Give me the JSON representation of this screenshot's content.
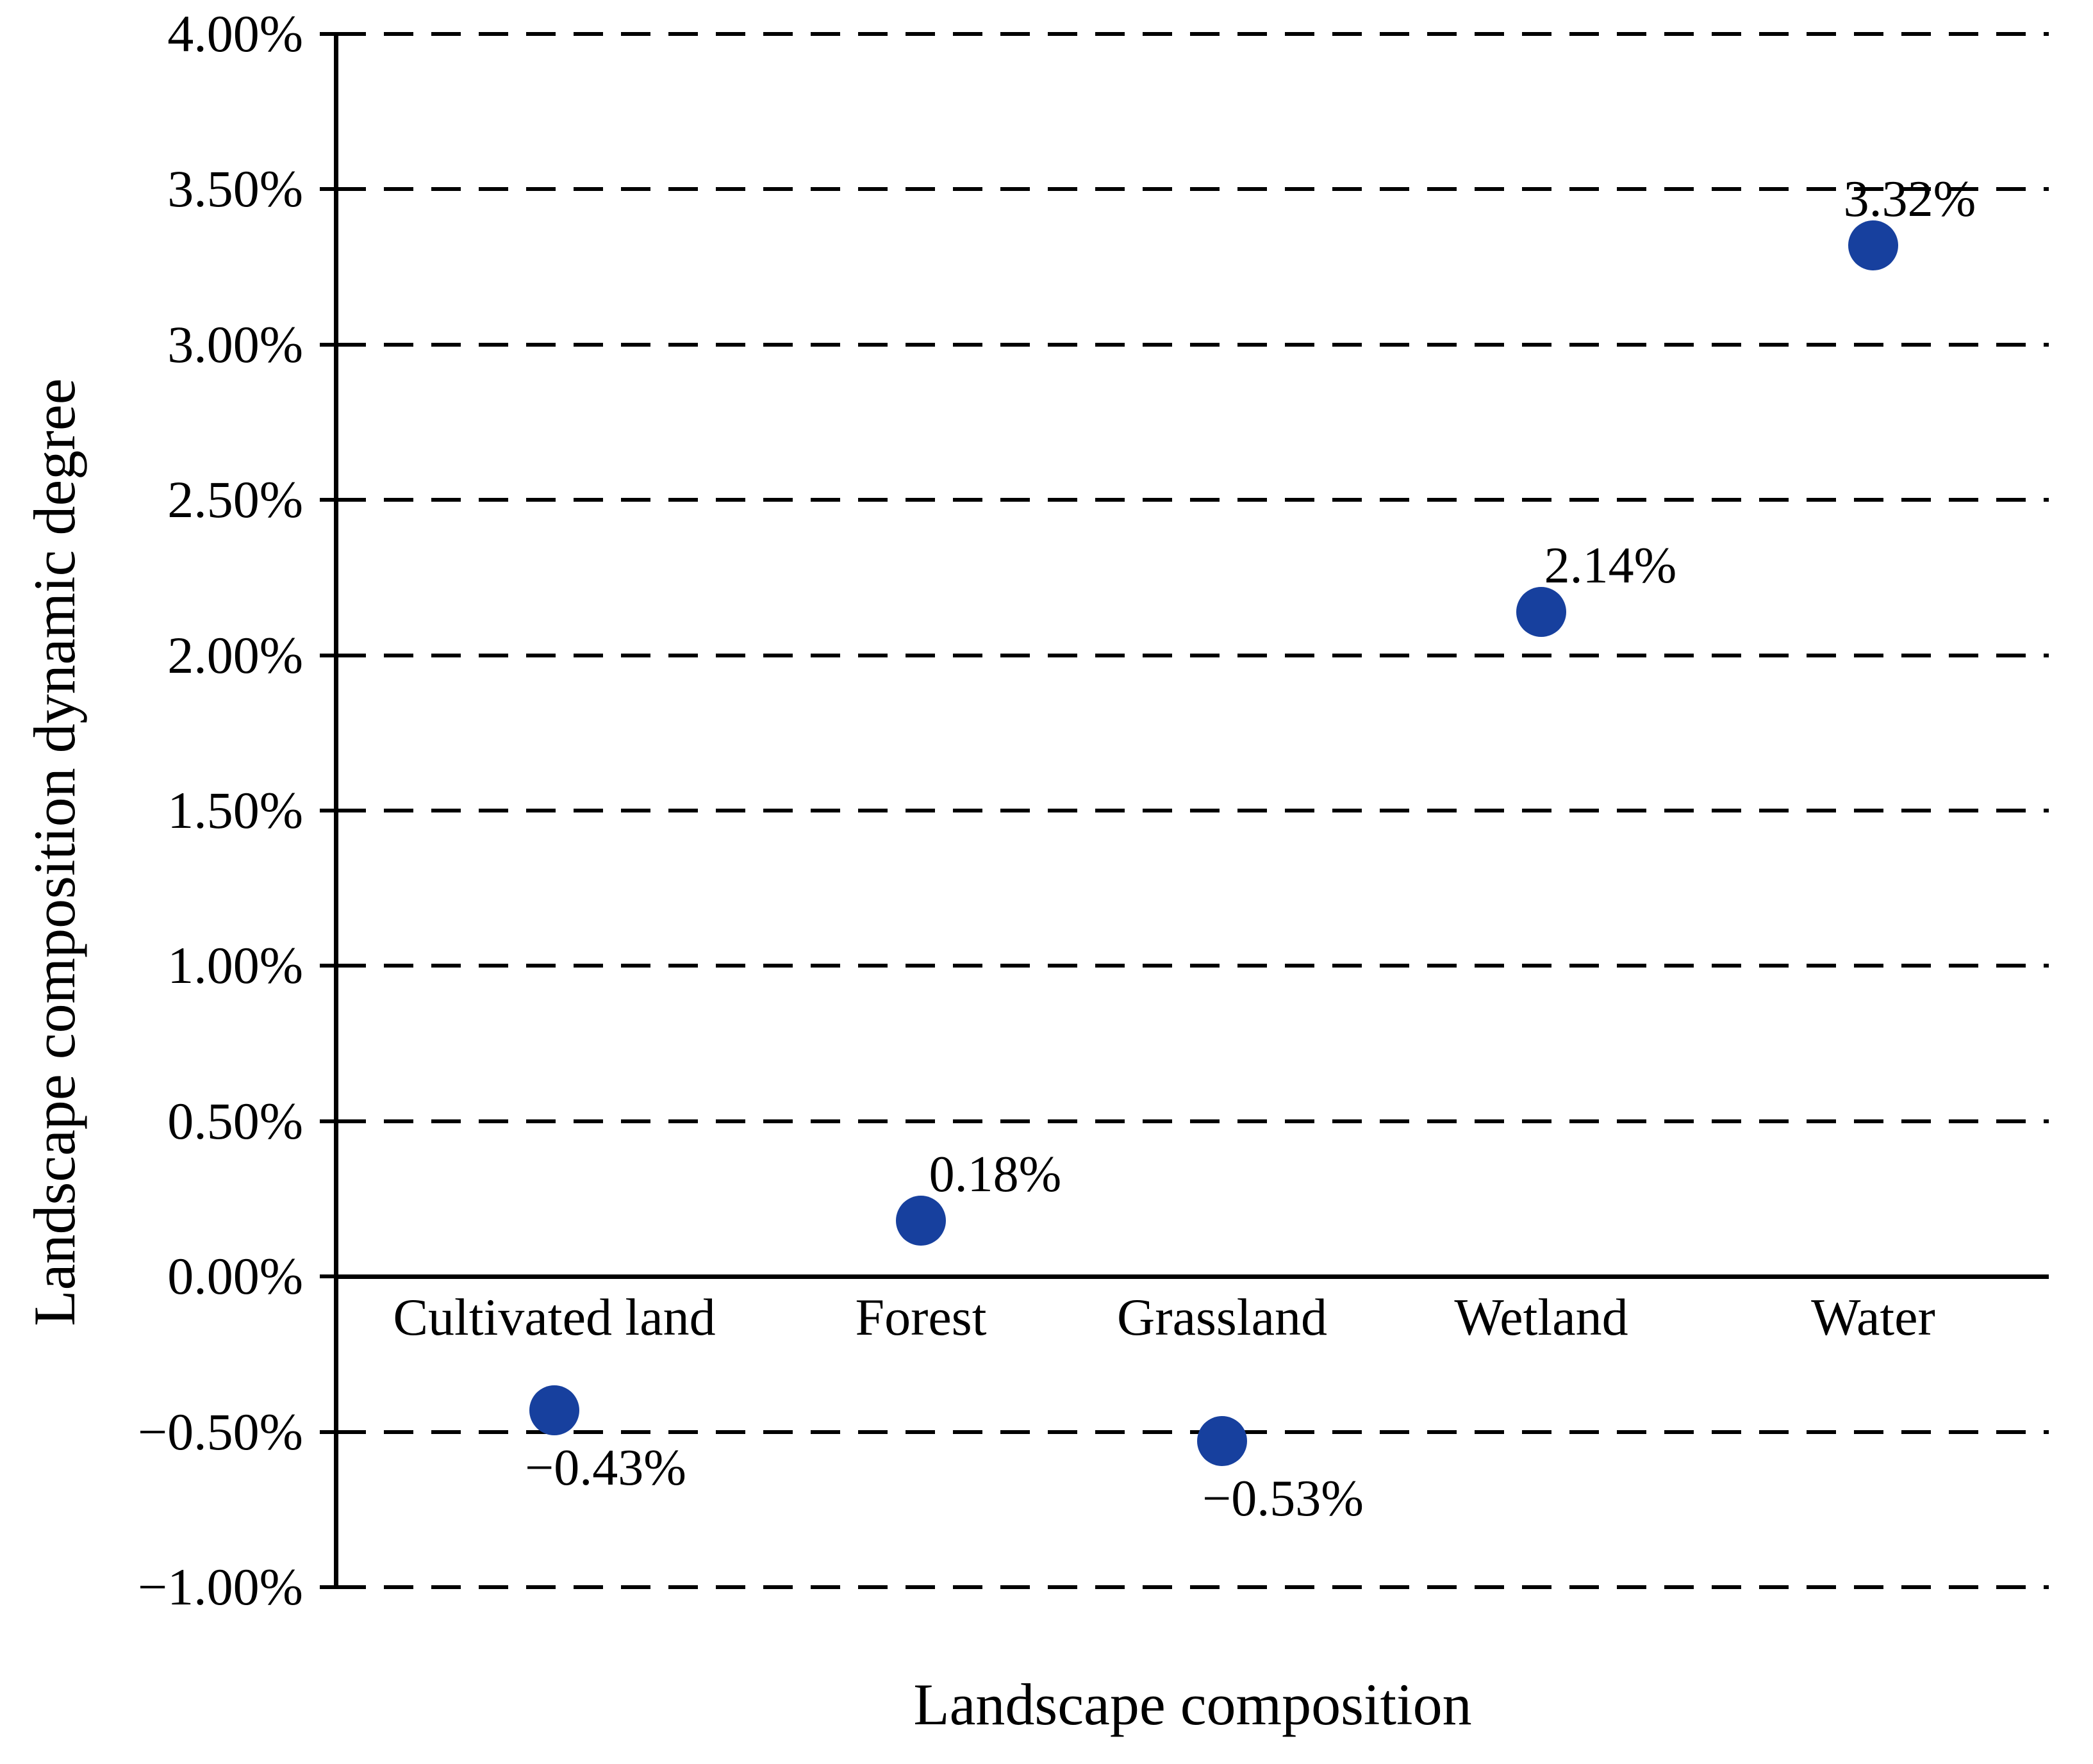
{
  "chart_data": {
    "type": "scatter",
    "title": "",
    "xlabel": "Landscape composition",
    "ylabel": "Landscape composition dynamic degree",
    "categories": [
      "Cultivated land",
      "Forest",
      "Grassland",
      "Wetland",
      "Water"
    ],
    "series": [
      {
        "name": "Landscape composition dynamic degree",
        "values": [
          -0.43,
          0.18,
          -0.53,
          2.14,
          3.32
        ]
      }
    ],
    "points": [
      {
        "category": "Cultivated land",
        "value": -0.43,
        "label": "−0.43%"
      },
      {
        "category": "Forest",
        "value": 0.18,
        "label": "0.18%"
      },
      {
        "category": "Grassland",
        "value": -0.53,
        "label": "−0.53%"
      },
      {
        "category": "Wetland",
        "value": 2.14,
        "label": "2.14%"
      },
      {
        "category": "Water",
        "value": 3.32,
        "label": "3.32%"
      }
    ],
    "y_ticks": [
      {
        "value": 4.0,
        "label": "4.00%"
      },
      {
        "value": 3.5,
        "label": "3.50%"
      },
      {
        "value": 3.0,
        "label": "3.00%"
      },
      {
        "value": 2.5,
        "label": "2.50%"
      },
      {
        "value": 2.0,
        "label": "2.00%"
      },
      {
        "value": 1.5,
        "label": "1.50%"
      },
      {
        "value": 1.0,
        "label": "1.00%"
      },
      {
        "value": 0.5,
        "label": "0.50%"
      },
      {
        "value": 0.0,
        "label": "0.00%"
      },
      {
        "value": -0.5,
        "label": "−0.50%"
      },
      {
        "value": -1.0,
        "label": "−1.00%"
      }
    ],
    "ylim": [
      -1.0,
      4.0
    ],
    "grid": {
      "horizontal": "dashed",
      "zero_line": "solid",
      "vertical": "none"
    },
    "legend": "none",
    "marker_color": "#17409e",
    "axis_color": "#000000"
  }
}
